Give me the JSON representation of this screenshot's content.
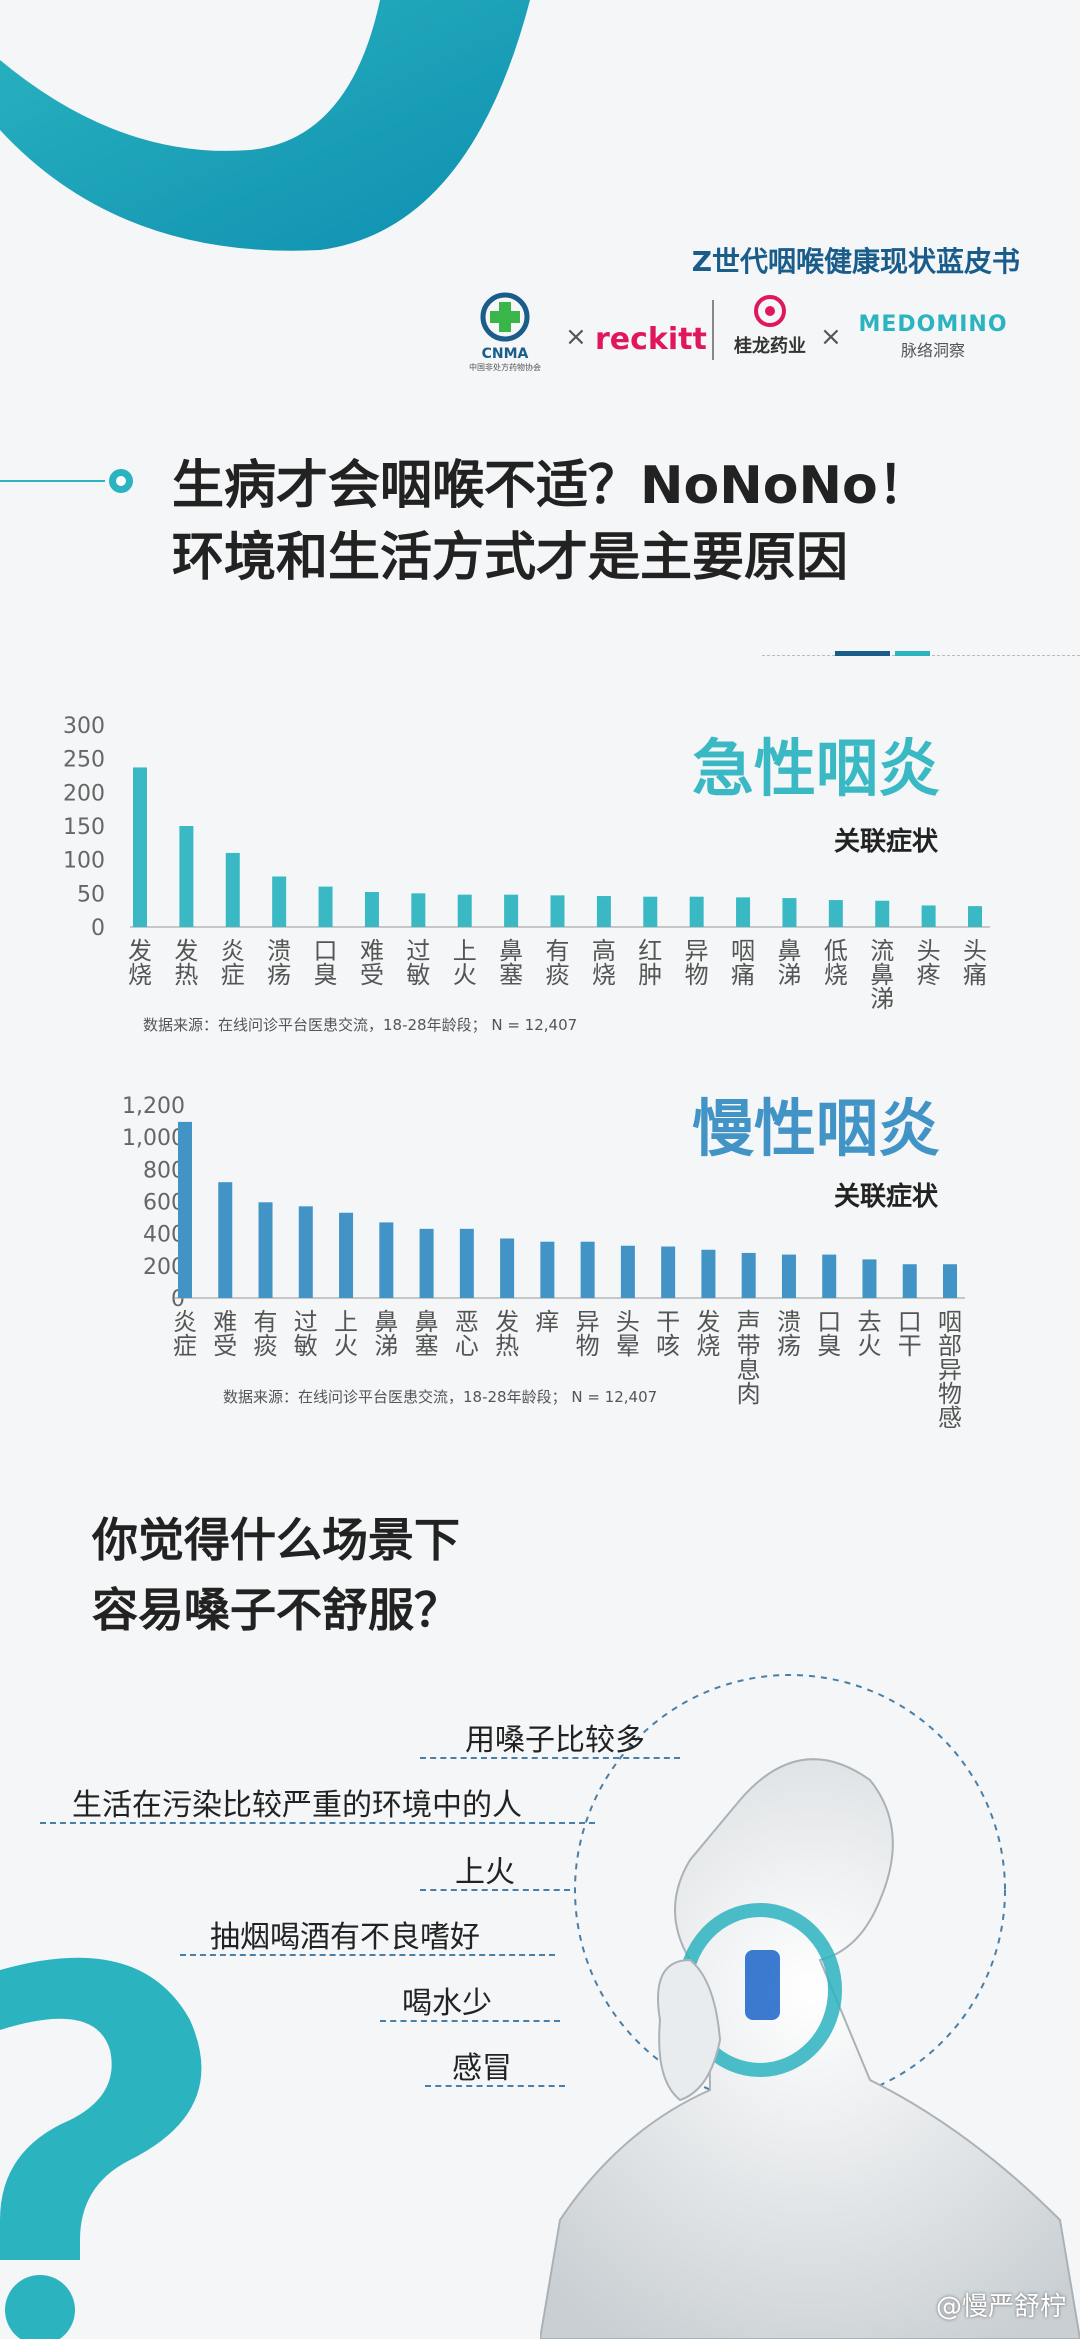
{
  "header": {
    "title": "Z世代咽喉健康现状蓝皮书",
    "logos": [
      {
        "name": "CNMA",
        "sub": "中国非处方药物协会"
      },
      {
        "name": "reckitt"
      },
      {
        "name": "桂龙药业"
      },
      {
        "name": "MEDOMINO",
        "sub": "脉络洞察"
      }
    ],
    "sep": "×"
  },
  "headline": {
    "line1": "生病才会咽喉不适？NoNoNo！",
    "line2": "环境和生活方式才是主要原因"
  },
  "colors": {
    "teal": "#3ab9c4",
    "blue": "#4293c6",
    "dark_blue": "#1a5c8a"
  },
  "chart_data": [
    {
      "type": "bar",
      "title": "急性咽炎",
      "subtitle": "关联症状",
      "categories": [
        "发烧",
        "发热",
        "炎症",
        "溃疡",
        "口臭",
        "难受",
        "过敏",
        "上火",
        "鼻塞",
        "有痰",
        "高烧",
        "红肿",
        "异物",
        "咽痛",
        "鼻涕",
        "低烧",
        "流鼻涕",
        "头疼",
        "头痛"
      ],
      "values": [
        237,
        150,
        110,
        75,
        60,
        52,
        50,
        48,
        48,
        47,
        46,
        45,
        45,
        44,
        43,
        40,
        39,
        32,
        31
      ],
      "ylim": [
        0,
        300
      ],
      "yticks": [
        "300",
        "250",
        "200",
        "150",
        "100",
        "50",
        "0"
      ],
      "source": "数据来源：在线问诊平台医患交流，18-28年龄段；  N = 12,407"
    },
    {
      "type": "bar",
      "title": "慢性咽炎",
      "subtitle": "关联症状",
      "categories": [
        "炎症",
        "难受",
        "有痰",
        "过敏",
        "上火",
        "鼻涕",
        "鼻塞",
        "恶心",
        "发热",
        "痒",
        "异物",
        "头晕",
        "干咳",
        "发烧",
        "声带息肉",
        "溃疡",
        "口臭",
        "去火",
        "口干",
        "咽部异物感"
      ],
      "values": [
        1095,
        720,
        595,
        570,
        530,
        470,
        430,
        430,
        370,
        350,
        350,
        325,
        320,
        300,
        280,
        270,
        270,
        240,
        210,
        210
      ],
      "ylim": [
        0,
        1200
      ],
      "yticks": [
        "1,200",
        "1,000",
        "800",
        "600",
        "400",
        "200",
        "0"
      ],
      "source": "数据来源：在线问诊平台医患交流，18-28年龄段；  N = 12,407"
    }
  ],
  "question": {
    "line1": "你觉得什么场景下",
    "line2": "容易嗓子不舒服？"
  },
  "scenes": [
    "用嗓子比较多",
    "生活在污染比较严重的环境中的人",
    "上火",
    "抽烟喝酒有不良嗜好",
    "喝水少",
    "感冒"
  ],
  "watermark": "@慢严舒柠"
}
